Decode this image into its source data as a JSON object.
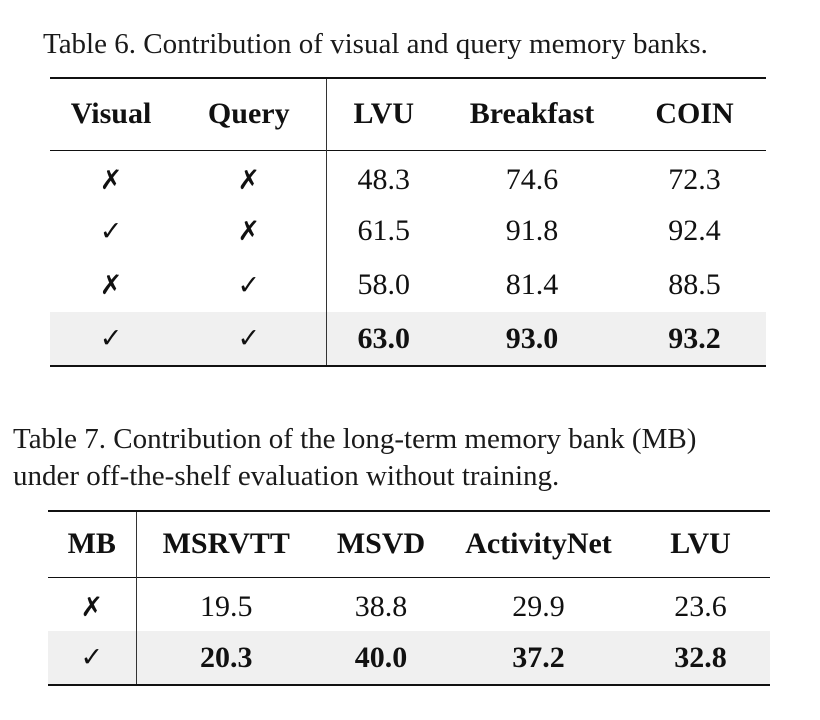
{
  "table6": {
    "caption": "Table 6. Contribution of visual and query memory banks.",
    "headers": [
      "Visual",
      "Query",
      "LVU",
      "Breakfast",
      "COIN"
    ],
    "rows": [
      [
        "✗",
        "✗",
        "48.3",
        "74.6",
        "72.3"
      ],
      [
        "✓",
        "✗",
        "61.5",
        "91.8",
        "92.4"
      ],
      [
        "✗",
        "✓",
        "58.0",
        "81.4",
        "88.5"
      ],
      [
        "✓",
        "✓",
        "63.0",
        "93.0",
        "93.2"
      ]
    ]
  },
  "table7": {
    "caption_line1": "Table 7.  Contribution of the long-term memory bank (MB)",
    "caption_line2": "under off-the-shelf evaluation without training.",
    "headers": [
      "MB",
      "MSRVTT",
      "MSVD",
      "ActivityNet",
      "LVU"
    ],
    "rows": [
      [
        "✗",
        "19.5",
        "38.8",
        "29.9",
        "23.6"
      ],
      [
        "✓",
        "20.3",
        "40.0",
        "37.2",
        "32.8"
      ]
    ]
  },
  "colors": {
    "highlight_row": "#f0f0f0",
    "rule": "#111111"
  }
}
